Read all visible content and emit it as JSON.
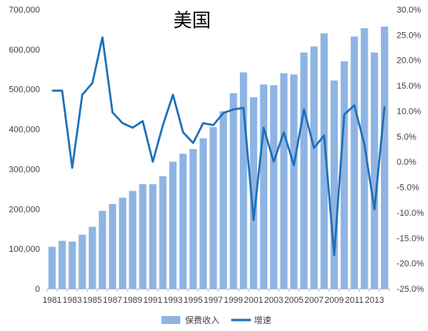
{
  "chart_data": {
    "type": "bar",
    "title": "美国",
    "categories": [
      1981,
      1982,
      1983,
      1984,
      1985,
      1986,
      1987,
      1988,
      1989,
      1990,
      1991,
      1992,
      1993,
      1994,
      1995,
      1996,
      1997,
      1998,
      1999,
      2000,
      2001,
      2002,
      2003,
      2004,
      2005,
      2006,
      2007,
      2008,
      2009,
      2010,
      2011,
      2012,
      2013,
      2014
    ],
    "x_tick_labels": [
      "1981",
      "1983",
      "1985",
      "1987",
      "1989",
      "1991",
      "1993",
      "1995",
      "1997",
      "1999",
      "2001",
      "2003",
      "2005",
      "2007",
      "2009",
      "2011",
      "2013"
    ],
    "left_axis": {
      "ylim": [
        0,
        700000
      ],
      "tick_labels": [
        "0",
        "100,000",
        "200,000",
        "300,000",
        "400,000",
        "500,000",
        "600,000",
        "700,000"
      ]
    },
    "right_axis": {
      "ylim": [
        -25,
        30
      ],
      "tick_labels": [
        "-25.0%",
        "-20.0%",
        "-15.0%",
        "-10.0%",
        "-5.0%",
        "0.0%",
        "5.0%",
        "10.0%",
        "15.0%",
        "20.0%",
        "25.0%",
        "30.0%"
      ]
    },
    "series": [
      {
        "name": "保费收入",
        "type": "bar",
        "axis": "left",
        "color": "#8EB4E3",
        "values": [
          105000,
          120000,
          118000,
          135000,
          155000,
          195000,
          212000,
          228000,
          245000,
          262000,
          262000,
          282000,
          318000,
          338000,
          350000,
          377000,
          405000,
          445000,
          490000,
          542000,
          480000,
          512000,
          510000,
          540000,
          537000,
          592000,
          607000,
          640000,
          522000,
          570000,
          632000,
          653000,
          592000,
          657000
        ]
      },
      {
        "name": "增速",
        "type": "line",
        "axis": "right",
        "color": "#1F6FB8",
        "values": [
          14.0,
          14.0,
          -1.2,
          13.2,
          15.5,
          24.5,
          9.7,
          7.6,
          6.7,
          8.0,
          0.0,
          7.2,
          13.2,
          5.8,
          3.7,
          7.6,
          7.2,
          9.6,
          10.3,
          10.6,
          -11.5,
          6.7,
          0.0,
          5.8,
          -0.7,
          10.3,
          2.7,
          5.2,
          -18.4,
          9.3,
          11.1,
          3.4,
          -9.4,
          10.9
        ]
      }
    ],
    "legend": {
      "placement": "bottom-center",
      "entries": [
        "保费收入",
        "增速"
      ]
    },
    "grid": false
  }
}
